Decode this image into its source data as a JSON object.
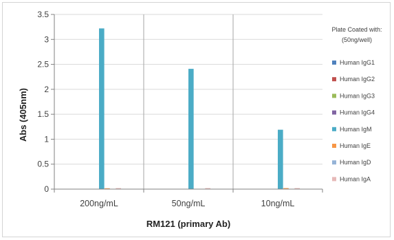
{
  "chart_data": {
    "type": "bar",
    "categories": [
      "200ng/mL",
      "50ng/mL",
      "10ng/mL"
    ],
    "series": [
      {
        "name": "Human IgG1",
        "color": "#4f81bd",
        "values": [
          0.0,
          0.0,
          0.0
        ]
      },
      {
        "name": "Human IgG2",
        "color": "#c0504d",
        "values": [
          0.0,
          0.0,
          0.0
        ]
      },
      {
        "name": "Human IgG3",
        "color": "#9bbb59",
        "values": [
          0.0,
          0.0,
          0.0
        ]
      },
      {
        "name": "Human IgG4",
        "color": "#8064a2",
        "values": [
          0.0,
          0.0,
          0.0
        ]
      },
      {
        "name": "Human IgM",
        "color": "#4bacc6",
        "values": [
          3.22,
          2.41,
          1.19
        ]
      },
      {
        "name": "Human IgE",
        "color": "#f79646",
        "values": [
          0.01,
          0.0,
          0.02
        ]
      },
      {
        "name": "Human IgD",
        "color": "#95b3d7",
        "values": [
          0.0,
          0.0,
          0.0
        ]
      },
      {
        "name": "Human IgA",
        "color": "#e6b9b8",
        "values": [
          0.02,
          0.02,
          0.02
        ]
      }
    ],
    "xlabel": "RM121 (primary Ab)",
    "ylabel": "Abs (405nm)",
    "ylim": [
      0,
      3.5
    ],
    "yticks": [
      "0",
      "0.5",
      "1",
      "1.5",
      "2",
      "2.5",
      "3",
      "3.5"
    ],
    "grid": true,
    "legend": {
      "title_line1": "Plate Coated with:",
      "title_line2": "(50ng/well)",
      "placement": "right"
    }
  }
}
